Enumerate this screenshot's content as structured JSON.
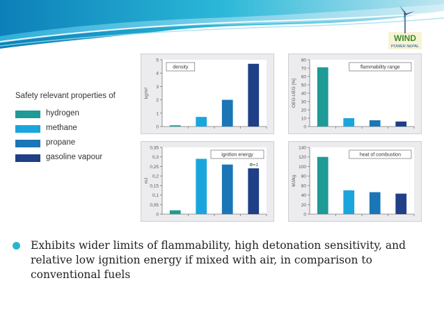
{
  "legend": {
    "title": "Safety relevant properties of",
    "items": [
      {
        "label": "hydrogen",
        "color": "#1e9a97"
      },
      {
        "label": "methane",
        "color": "#1aa6dc"
      },
      {
        "label": "propane",
        "color": "#1a76b6"
      },
      {
        "label": "gasoline vapour",
        "color": "#1f3f87"
      }
    ]
  },
  "logo": {
    "line1": "WIND",
    "line2": "POWER NEPAL"
  },
  "bullet": {
    "text": "Exhibits wider limits of flammability, high detonation sensitivity, and relative low ignition energy if mixed with air, in comparison to conventional fuels"
  },
  "chart_data": [
    {
      "type": "bar",
      "title": "density",
      "ylabel": "kg/m³",
      "categories": [
        "hydrogen",
        "methane",
        "propane",
        "gasoline vapour"
      ],
      "values": [
        0.09,
        0.72,
        2.0,
        4.7
      ],
      "ylim": [
        0,
        5
      ],
      "yticks": [
        "0",
        "1",
        "2",
        "3",
        "4",
        "5"
      ],
      "ytick_values": [
        0,
        1,
        2,
        3,
        4,
        5
      ]
    },
    {
      "type": "bar",
      "title": "flammability range",
      "ylabel": "OEG-UEG [%]",
      "categories": [
        "hydrogen",
        "methane",
        "propane",
        "gasoline vapour"
      ],
      "values": [
        71,
        10,
        7.5,
        6
      ],
      "ylim": [
        0,
        80
      ],
      "yticks": [
        "0",
        "10",
        "20",
        "30",
        "40",
        "50",
        "60",
        "70",
        "80"
      ],
      "ytick_values": [
        0,
        10,
        20,
        30,
        40,
        50,
        60,
        70,
        80
      ]
    },
    {
      "type": "bar",
      "title": "ignition energy",
      "annotation": "Φ=1",
      "ylabel": "mJ",
      "categories": [
        "hydrogen",
        "methane",
        "propane",
        "gasoline vapour"
      ],
      "values": [
        0.02,
        0.29,
        0.26,
        0.24
      ],
      "ylim": [
        0,
        0.35
      ],
      "yticks": [
        "0",
        "0,05",
        "0,1",
        "0,15",
        "0,2",
        "0,25",
        "0,3",
        "0,35"
      ],
      "ytick_values": [
        0,
        0.05,
        0.1,
        0.15,
        0.2,
        0.25,
        0.3,
        0.35
      ]
    },
    {
      "type": "bar",
      "title": "heat of combustion",
      "ylabel": "MJ/kg",
      "categories": [
        "hydrogen",
        "methane",
        "propane",
        "gasoline vapour"
      ],
      "values": [
        120,
        50,
        46,
        43
      ],
      "ylim": [
        0,
        140
      ],
      "yticks": [
        "0",
        "20",
        "40",
        "60",
        "80",
        "100",
        "120",
        "140"
      ],
      "ytick_values": [
        0,
        20,
        40,
        60,
        80,
        100,
        120,
        140
      ]
    }
  ]
}
